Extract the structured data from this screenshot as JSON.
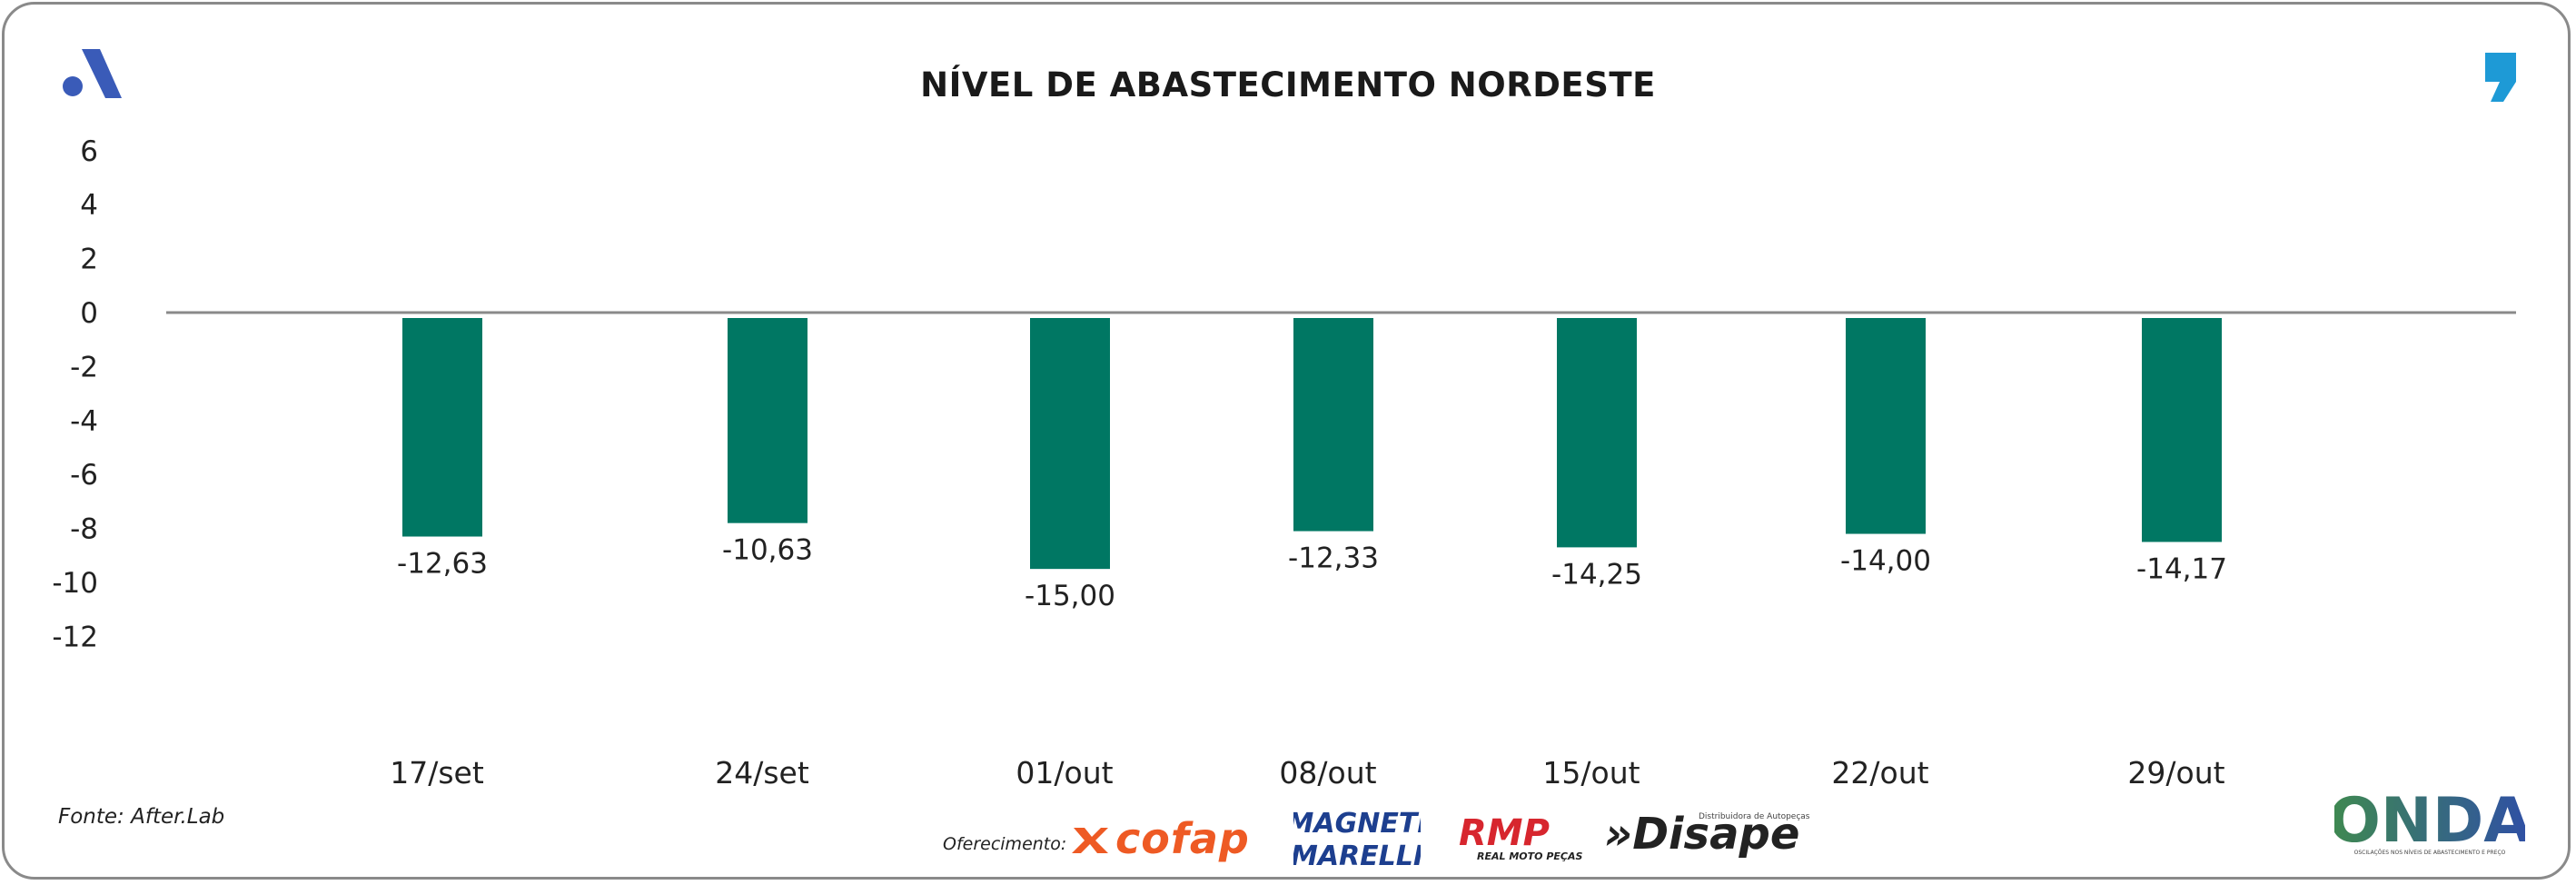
{
  "header": {
    "title": "NÍVEL DE ABASTECIMENTO NORDESTE"
  },
  "chart_data": {
    "type": "bar",
    "title": "NÍVEL DE ABASTECIMENTO NORDESTE",
    "categories": [
      "17/set",
      "24/set",
      "01/out",
      "08/out",
      "15/out",
      "22/out",
      "29/out"
    ],
    "values": [
      -12.63,
      -10.63,
      -15.0,
      -12.33,
      -14.25,
      -14.0,
      -14.17
    ],
    "bar_lengths": [
      -8.3,
      -7.8,
      -9.5,
      -8.1,
      -8.7,
      -8.2,
      -8.5
    ],
    "value_labels": [
      "-12,63",
      "-10,63",
      "-15,00",
      "-12,33",
      "-14,25",
      "-14,00",
      "-14,17"
    ],
    "yticks": [
      6,
      4,
      2,
      0,
      -2,
      -4,
      -6,
      -8,
      -10,
      -12
    ],
    "ytick_labels": [
      "6",
      "4",
      "2",
      "0",
      "-2",
      "-4",
      "-6",
      "-8",
      "-10",
      "-12"
    ],
    "ylim": [
      -12,
      6
    ],
    "xlabel": "",
    "ylabel": "",
    "grid": false,
    "bar_color": "#007763",
    "axis_color": "#8a8a8a"
  },
  "footer": {
    "source": "Fonte: After.Lab",
    "sponsor_label": "Oferecimento:",
    "sponsors": {
      "cofap": "cofap",
      "magneti_line1": "MAGNETI",
      "magneti_line2": "MARELLI",
      "rmp": "RMP",
      "rmp_sub": "REAL MOTO PEÇAS",
      "disape": "»Disape",
      "disape_sub": "Distribuidora de Autopeças"
    },
    "onda": "ONDA",
    "onda_sub": "OSCILAÇÕES NOS NÍVEIS DE ABASTECIMENTO E PREÇO"
  },
  "colors": {
    "brand_blue": "#3a5bb8",
    "quote_blue": "#1e9ad6",
    "cofap_orange": "#ee5a24",
    "magneti_blue": "#1d3f8f",
    "rmp_red": "#d7262e",
    "onda_green": "#3f8a4f"
  },
  "icons": {
    "brand": "brand-a-icon",
    "quote": "quote-mark-icon"
  }
}
